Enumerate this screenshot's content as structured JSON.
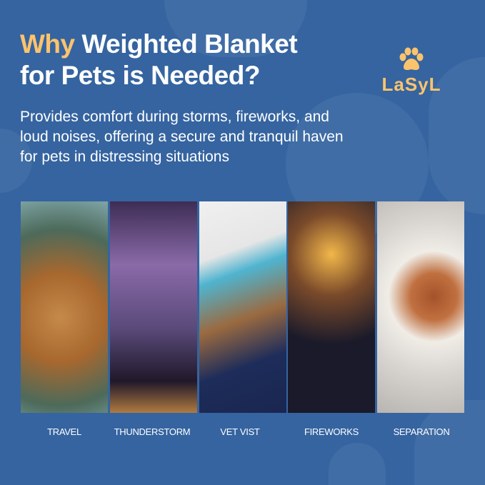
{
  "heading": {
    "accent": "Why",
    "rest_line1": " Weighted Blanket",
    "line2": "for Pets is Needed?"
  },
  "brand": {
    "name": "LaSyL",
    "icon": "paw-icon"
  },
  "description": "Provides comfort during storms, fireworks, and loud noises, offering a secure and tranquil haven for pets in distressing situations",
  "colors": {
    "background": "#3564a0",
    "accent": "#fcc36d",
    "text": "#ffffff"
  },
  "panels": [
    {
      "label": "TRAVEL"
    },
    {
      "label": "THUNDERSTORM"
    },
    {
      "label": "VET VIST"
    },
    {
      "label": "FIREWORKS"
    },
    {
      "label": "SEPARATION"
    }
  ]
}
